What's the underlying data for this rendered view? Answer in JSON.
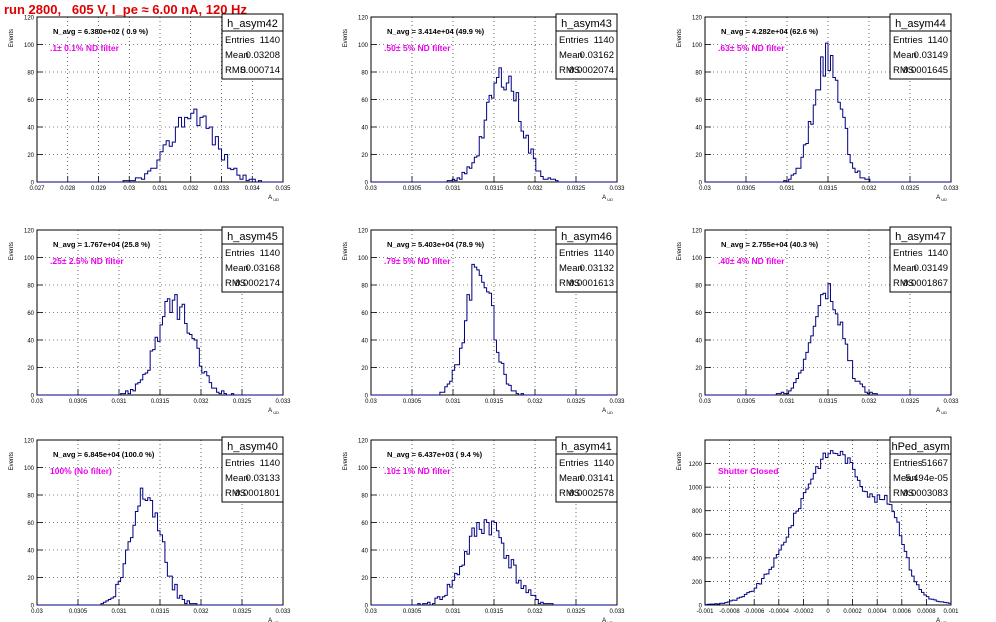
{
  "page_title": "run 2800,   605 V, I_pe ≈ 6.00 nA, 120 Hz",
  "colors": {
    "title": "#e00000",
    "filter_label": "#ee00ee",
    "histogram": "#000080",
    "grid": "#000000"
  },
  "chart_data": [
    {
      "type": "histogram",
      "name": "h_asym42",
      "ylabel": "Events",
      "xlabel": "A_UD",
      "navg": "N_avg = 6.380e+02 ( 0.9 %)",
      "filter": ".1± 0.1% ND filter",
      "stats": {
        "entries": "1140",
        "mean": "0.03208",
        "rms": "0.000714"
      },
      "xlim": [
        0.027,
        0.035
      ],
      "ylim": [
        0,
        120
      ],
      "xticks": [
        "0.027",
        "0.028",
        "0.029",
        "0.03",
        "0.031",
        "0.032",
        "0.033",
        "0.034",
        "0.035"
      ],
      "yticks": [
        "0",
        "20",
        "40",
        "60",
        "80",
        "100",
        "120"
      ],
      "mu": 0.03208,
      "sigma": 0.000714,
      "peak": 50,
      "bins": 80,
      "seed": 42
    },
    {
      "type": "histogram",
      "name": "h_asym43",
      "ylabel": "Events",
      "xlabel": "A_UD",
      "navg": "N_avg = 3.414e+04 (49.9 %)",
      "filter": ".50± 5% ND filter",
      "stats": {
        "entries": "1140",
        "mean": "0.03162",
        "rms": "0.0002074"
      },
      "xlim": [
        0.03,
        0.033
      ],
      "ylim": [
        0,
        120
      ],
      "xticks": [
        "0.03",
        "0.0305",
        "0.031",
        "0.0315",
        "0.032",
        "0.0325",
        "0.033"
      ],
      "yticks": [
        "0",
        "20",
        "40",
        "60",
        "80",
        "100",
        "120"
      ],
      "mu": 0.03162,
      "sigma": 0.0002074,
      "peak": 78,
      "bins": 100,
      "seed": 43
    },
    {
      "type": "histogram",
      "name": "h_asym44",
      "ylabel": "Events",
      "xlabel": "A_UD",
      "navg": "N_avg = 4.282e+04 (62.6 %)",
      "filter": ".63± 5% ND filter",
      "stats": {
        "entries": "1140",
        "mean": "0.03149",
        "rms": "0.0001645"
      },
      "xlim": [
        0.03,
        0.033
      ],
      "ylim": [
        0,
        120
      ],
      "xticks": [
        "0.03",
        "0.0305",
        "0.031",
        "0.0315",
        "0.032",
        "0.0325",
        "0.033"
      ],
      "yticks": [
        "0",
        "20",
        "40",
        "60",
        "80",
        "100",
        "120"
      ],
      "mu": 0.03149,
      "sigma": 0.0001645,
      "peak": 90,
      "bins": 100,
      "seed": 44
    },
    {
      "type": "histogram",
      "name": "h_asym45",
      "ylabel": "Events",
      "xlabel": "A_UD",
      "navg": "N_avg = 1.767e+04 (25.8 %)",
      "filter": ".25± 2.5% ND filter",
      "stats": {
        "entries": "1140",
        "mean": "0.03168",
        "rms": "0.0002174"
      },
      "xlim": [
        0.03,
        0.033
      ],
      "ylim": [
        0,
        120
      ],
      "xticks": [
        "0.03",
        "0.0305",
        "0.031",
        "0.0315",
        "0.032",
        "0.0325",
        "0.033"
      ],
      "yticks": [
        "0",
        "20",
        "40",
        "60",
        "80",
        "100",
        "120"
      ],
      "mu": 0.03168,
      "sigma": 0.0002174,
      "peak": 66,
      "bins": 100,
      "seed": 45
    },
    {
      "type": "histogram",
      "name": "h_asym46",
      "ylabel": "Events",
      "xlabel": "A_UD",
      "navg": "N_avg = 5.403e+04 (78.9 %)",
      "filter": ".79± 5% ND filter",
      "stats": {
        "entries": "1140",
        "mean": "0.03132",
        "rms": "0.0001613"
      },
      "xlim": [
        0.03,
        0.033
      ],
      "ylim": [
        0,
        120
      ],
      "xticks": [
        "0.03",
        "0.0305",
        "0.031",
        "0.0315",
        "0.032",
        "0.0325",
        "0.033"
      ],
      "yticks": [
        "0",
        "20",
        "40",
        "60",
        "80",
        "100",
        "120"
      ],
      "mu": 0.03132,
      "sigma": 0.0001613,
      "peak": 95,
      "bins": 100,
      "seed": 46
    },
    {
      "type": "histogram",
      "name": "h_asym47",
      "ylabel": "Events",
      "xlabel": "A_UD",
      "navg": "N_avg = 2.755e+04 (40.3 %)",
      "filter": ".40± 4% ND filter",
      "stats": {
        "entries": "1140",
        "mean": "0.03149",
        "rms": "0.0001867"
      },
      "xlim": [
        0.03,
        0.033
      ],
      "ylim": [
        0,
        120
      ],
      "xticks": [
        "0.03",
        "0.0305",
        "0.031",
        "0.0315",
        "0.032",
        "0.0325",
        "0.033"
      ],
      "yticks": [
        "0",
        "20",
        "40",
        "60",
        "80",
        "100",
        "120"
      ],
      "mu": 0.03149,
      "sigma": 0.0001867,
      "peak": 73,
      "bins": 100,
      "seed": 47
    },
    {
      "type": "histogram",
      "name": "h_asym40",
      "ylabel": "Events",
      "xlabel": "A_UD",
      "navg": "N_avg = 6.845e+04 (100.0 %)",
      "filter": "100% (No filter)",
      "stats": {
        "entries": "1140",
        "mean": "0.03133",
        "rms": "0.0001801"
      },
      "xlim": [
        0.03,
        0.033
      ],
      "ylim": [
        0,
        120
      ],
      "xticks": [
        "0.03",
        "0.0305",
        "0.031",
        "0.0315",
        "0.032",
        "0.0325",
        "0.033"
      ],
      "yticks": [
        "0",
        "20",
        "40",
        "60",
        "80",
        "100",
        "120"
      ],
      "mu": 0.03133,
      "sigma": 0.0001801,
      "peak": 85,
      "bins": 100,
      "seed": 40
    },
    {
      "type": "histogram",
      "name": "h_asym41",
      "ylabel": "Events",
      "xlabel": "A_UD",
      "navg": "N_avg = 6.437e+03 ( 9.4 %)",
      "filter": ".10± 1% ND filter",
      "stats": {
        "entries": "1140",
        "mean": "0.03141",
        "rms": "0.0002578"
      },
      "xlim": [
        0.03,
        0.033
      ],
      "ylim": [
        0,
        120
      ],
      "xticks": [
        "0.03",
        "0.0305",
        "0.031",
        "0.0315",
        "0.032",
        "0.0325",
        "0.033"
      ],
      "yticks": [
        "0",
        "20",
        "40",
        "60",
        "80",
        "100",
        "120"
      ],
      "mu": 0.03141,
      "sigma": 0.0002578,
      "peak": 60,
      "bins": 100,
      "seed": 41
    },
    {
      "type": "histogram",
      "name": "hPed_asym",
      "ylabel": "Events",
      "xlabel": "A_UD",
      "navg": "",
      "filter": "Shutter Closed",
      "stats": {
        "entries": "51667",
        "mean": "5.494e-05",
        "rms": "0.0003083"
      },
      "xlim": [
        -0.001,
        0.001
      ],
      "ylim": [
        0,
        1400
      ],
      "xticks": [
        "-0.001",
        "-0.0008",
        "-0.0006",
        "-0.0004",
        "-0.0002",
        "0",
        "0.0002",
        "0.0004",
        "0.0006",
        "0.0008",
        "0.001"
      ],
      "yticks": [
        "0",
        "200",
        "400",
        "600",
        "800",
        "1000",
        "1200"
      ],
      "mu": 5.494e-05,
      "sigma": 0.0003083,
      "peak": 1300,
      "bins": 100,
      "seed": 9,
      "shoulder": {
        "mu": 0.00052,
        "sigma": 0.0001,
        "peak": 420
      }
    }
  ]
}
